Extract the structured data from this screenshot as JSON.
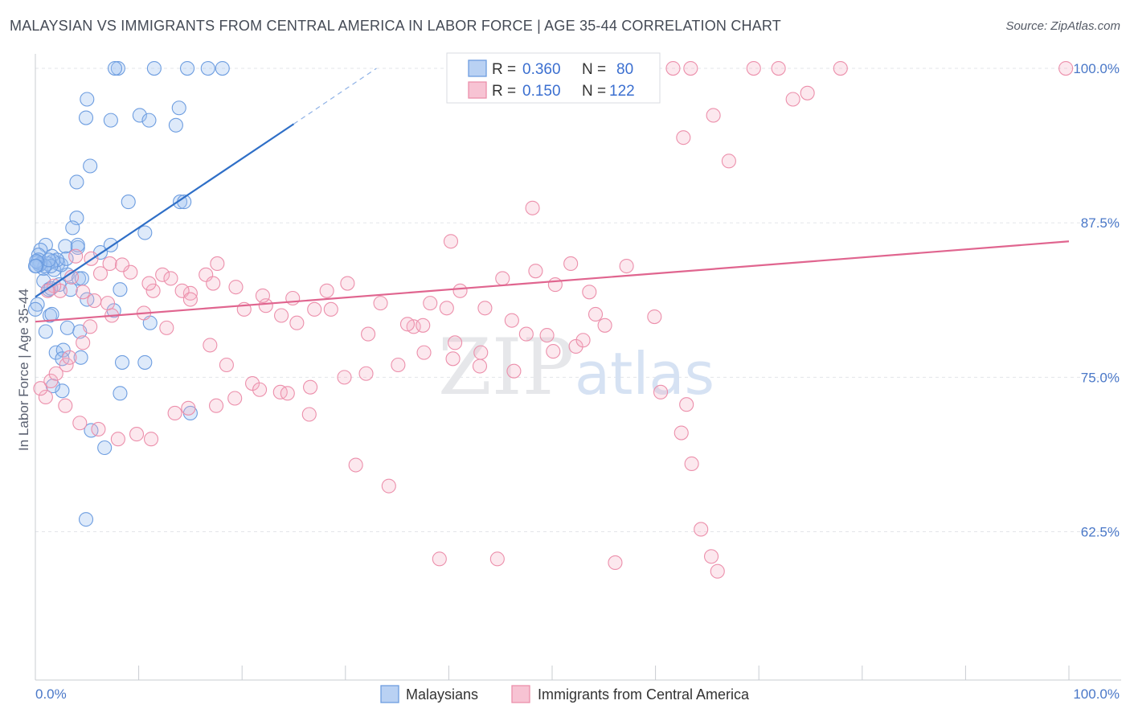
{
  "title": "MALAYSIAN VS IMMIGRANTS FROM CENTRAL AMERICA IN LABOR FORCE | AGE 35-44 CORRELATION CHART",
  "source": "Source: ZipAtlas.com",
  "watermark": {
    "part1": "ZIP",
    "part2": "atlas"
  },
  "legend_top": [
    {
      "r_label": "R =",
      "r_value": "0.360",
      "n_label": "N =",
      "n_value": "80"
    },
    {
      "r_label": "R =",
      "r_value": "0.150",
      "n_label": "N =",
      "n_value": "122"
    }
  ],
  "chart_data": {
    "type": "scatter",
    "title": "MALAYSIAN VS IMMIGRANTS FROM CENTRAL AMERICA IN LABOR FORCE | AGE 35-44 CORRELATION CHART",
    "xlabel": "",
    "ylabel": "In Labor Force | Age 35-44",
    "xlim": [
      0,
      100
    ],
    "ylim": [
      50.5,
      101.5
    ],
    "x_tick_labels": [
      "0.0%",
      "100.0%"
    ],
    "y_ticks": [
      62.5,
      75.0,
      87.5,
      100.0
    ],
    "y_tick_labels": [
      "62.5%",
      "75.0%",
      "87.5%",
      "100.0%"
    ],
    "grid": true,
    "legend_position": "bottom-center",
    "colors": {
      "blue": "#6d9de0",
      "pink": "#ec8fab",
      "blue_line": "#2f6fc7",
      "pink_line": "#e0658f"
    },
    "series": [
      {
        "name": "Malaysians",
        "r": 0.36,
        "n": 80,
        "trend": {
          "x": [
            0,
            25,
            33
          ],
          "y": [
            81.5,
            95.5,
            100.0
          ]
        },
        "x": [
          8.0,
          7.7,
          11.5,
          14.7,
          16.7,
          18.1,
          13.6,
          5.0,
          4.9,
          7.3,
          10.1,
          11.0,
          13.9,
          4.0,
          5.3,
          9.0,
          4.0,
          3.6,
          14.0,
          14.4,
          10.6,
          4.1,
          4.1,
          6.3,
          2.9,
          1.0,
          1.6,
          0.5,
          0.3,
          0.3,
          2.2,
          3.1,
          0.8,
          1.8,
          2.5,
          3.0,
          2.1,
          1.7,
          1.2,
          1.5,
          0.5,
          0.4,
          0.9,
          1.3,
          0.2,
          0.1,
          0.1,
          0.8,
          1.3,
          4.2,
          4.5,
          7.3,
          2.3,
          3.4,
          5.0,
          1.5,
          0.2,
          0.0,
          1.4,
          1.6,
          8.4,
          3.1,
          10.6,
          1.0,
          4.3,
          2.0,
          2.7,
          4.4,
          2.6,
          8.2,
          2.6,
          15.0,
          5.4,
          6.7,
          1.7,
          7.6,
          8.2,
          4.9,
          11.1,
          0.0
        ],
        "y": [
          100.0,
          100.0,
          100.0,
          100.0,
          100.0,
          100.0,
          95.4,
          97.5,
          96.0,
          95.8,
          96.2,
          95.8,
          96.8,
          90.8,
          92.1,
          89.2,
          87.9,
          87.1,
          89.2,
          89.2,
          86.7,
          85.5,
          85.7,
          85.1,
          85.6,
          85.7,
          84.8,
          85.3,
          84.9,
          84.5,
          84.2,
          83.3,
          83.8,
          83.7,
          84.1,
          84.6,
          84.5,
          84.4,
          84.2,
          84.0,
          84.2,
          84.1,
          84.0,
          84.5,
          84.3,
          84.4,
          84.0,
          82.8,
          82.1,
          83.0,
          83.0,
          85.7,
          82.5,
          82.1,
          81.3,
          82.2,
          80.9,
          80.5,
          80.0,
          80.1,
          76.2,
          79.0,
          76.2,
          78.7,
          78.7,
          77.0,
          77.2,
          76.6,
          76.5,
          73.7,
          73.9,
          72.1,
          70.7,
          69.3,
          74.3,
          80.4,
          82.1,
          63.5,
          79.4,
          84.0
        ]
      },
      {
        "name": "Immigrants from Central America",
        "r": 0.15,
        "n": 122,
        "trend": {
          "x": [
            0,
            100
          ],
          "y": [
            79.5,
            86.0
          ]
        },
        "x": [
          61.7,
          63.4,
          71.9,
          73.3,
          74.7,
          99.7,
          77.9,
          69.5,
          59.2,
          65.6,
          67.1,
          62.7,
          48.1,
          40.2,
          48.4,
          55.1,
          53.6,
          45.2,
          36.6,
          41.1,
          50.3,
          57.2,
          51.8,
          38.2,
          30.2,
          25.3,
          19.4,
          23.8,
          27.0,
          20.2,
          22.3,
          15.0,
          11.4,
          16.5,
          17.6,
          12.3,
          9.2,
          5.4,
          3.9,
          7.2,
          6.3,
          14.2,
          28.6,
          32.2,
          37.5,
          40.6,
          43.1,
          47.5,
          52.3,
          63.0,
          60.5,
          62.5,
          63.5,
          64.4,
          65.4,
          66.0,
          56.1,
          44.7,
          39.1,
          34.2,
          31.0,
          26.5,
          23.7,
          21.0,
          18.5,
          16.9,
          12.7,
          10.5,
          7.0,
          5.7,
          4.6,
          2.4,
          1.8,
          1.2,
          3.5,
          8.4,
          13.1,
          17.2,
          22.0,
          24.9,
          28.2,
          33.4,
          36.0,
          39.8,
          43.5,
          46.1,
          49.5,
          54.2,
          59.9,
          53.0,
          50.1,
          46.3,
          43.0,
          40.4,
          37.6,
          35.1,
          32.0,
          29.9,
          26.6,
          24.4,
          21.7,
          19.3,
          17.5,
          14.8,
          13.5,
          11.2,
          9.8,
          8.0,
          6.1,
          4.3,
          2.9,
          1.0,
          0.5,
          1.5,
          2.0,
          3.0,
          3.3,
          4.6,
          5.3,
          7.4,
          15.0,
          11.0
        ],
        "y": [
          100.0,
          100.0,
          100.0,
          97.5,
          98.0,
          100.0,
          100.0,
          100.0,
          98.3,
          96.2,
          92.5,
          94.4,
          88.7,
          86.0,
          83.6,
          79.2,
          81.9,
          83.0,
          79.1,
          82.0,
          82.5,
          84.0,
          84.2,
          81.0,
          82.6,
          79.4,
          82.3,
          80.0,
          80.5,
          80.5,
          80.8,
          81.8,
          82.0,
          83.3,
          84.2,
          83.3,
          83.5,
          84.6,
          84.8,
          84.2,
          83.4,
          82.0,
          80.5,
          78.5,
          79.2,
          77.8,
          77.0,
          78.5,
          77.5,
          72.8,
          73.8,
          70.5,
          68.0,
          62.7,
          60.5,
          59.3,
          60.0,
          60.3,
          60.3,
          66.2,
          67.9,
          72.0,
          73.8,
          74.5,
          76.0,
          77.6,
          79.0,
          80.2,
          81.0,
          81.2,
          81.9,
          82.0,
          82.4,
          82.0,
          83.1,
          84.1,
          83.0,
          82.6,
          81.6,
          81.4,
          82.0,
          81.0,
          79.3,
          80.6,
          80.6,
          79.6,
          78.4,
          80.1,
          79.9,
          78.0,
          77.1,
          75.5,
          75.9,
          76.5,
          77.0,
          76.0,
          75.3,
          75.0,
          74.2,
          73.7,
          74.0,
          73.3,
          72.7,
          72.5,
          72.1,
          70.0,
          70.4,
          70.0,
          70.8,
          71.3,
          72.7,
          73.4,
          74.1,
          74.7,
          75.3,
          76.0,
          76.6,
          77.8,
          79.1,
          80.0,
          81.3,
          82.6
        ]
      }
    ]
  }
}
